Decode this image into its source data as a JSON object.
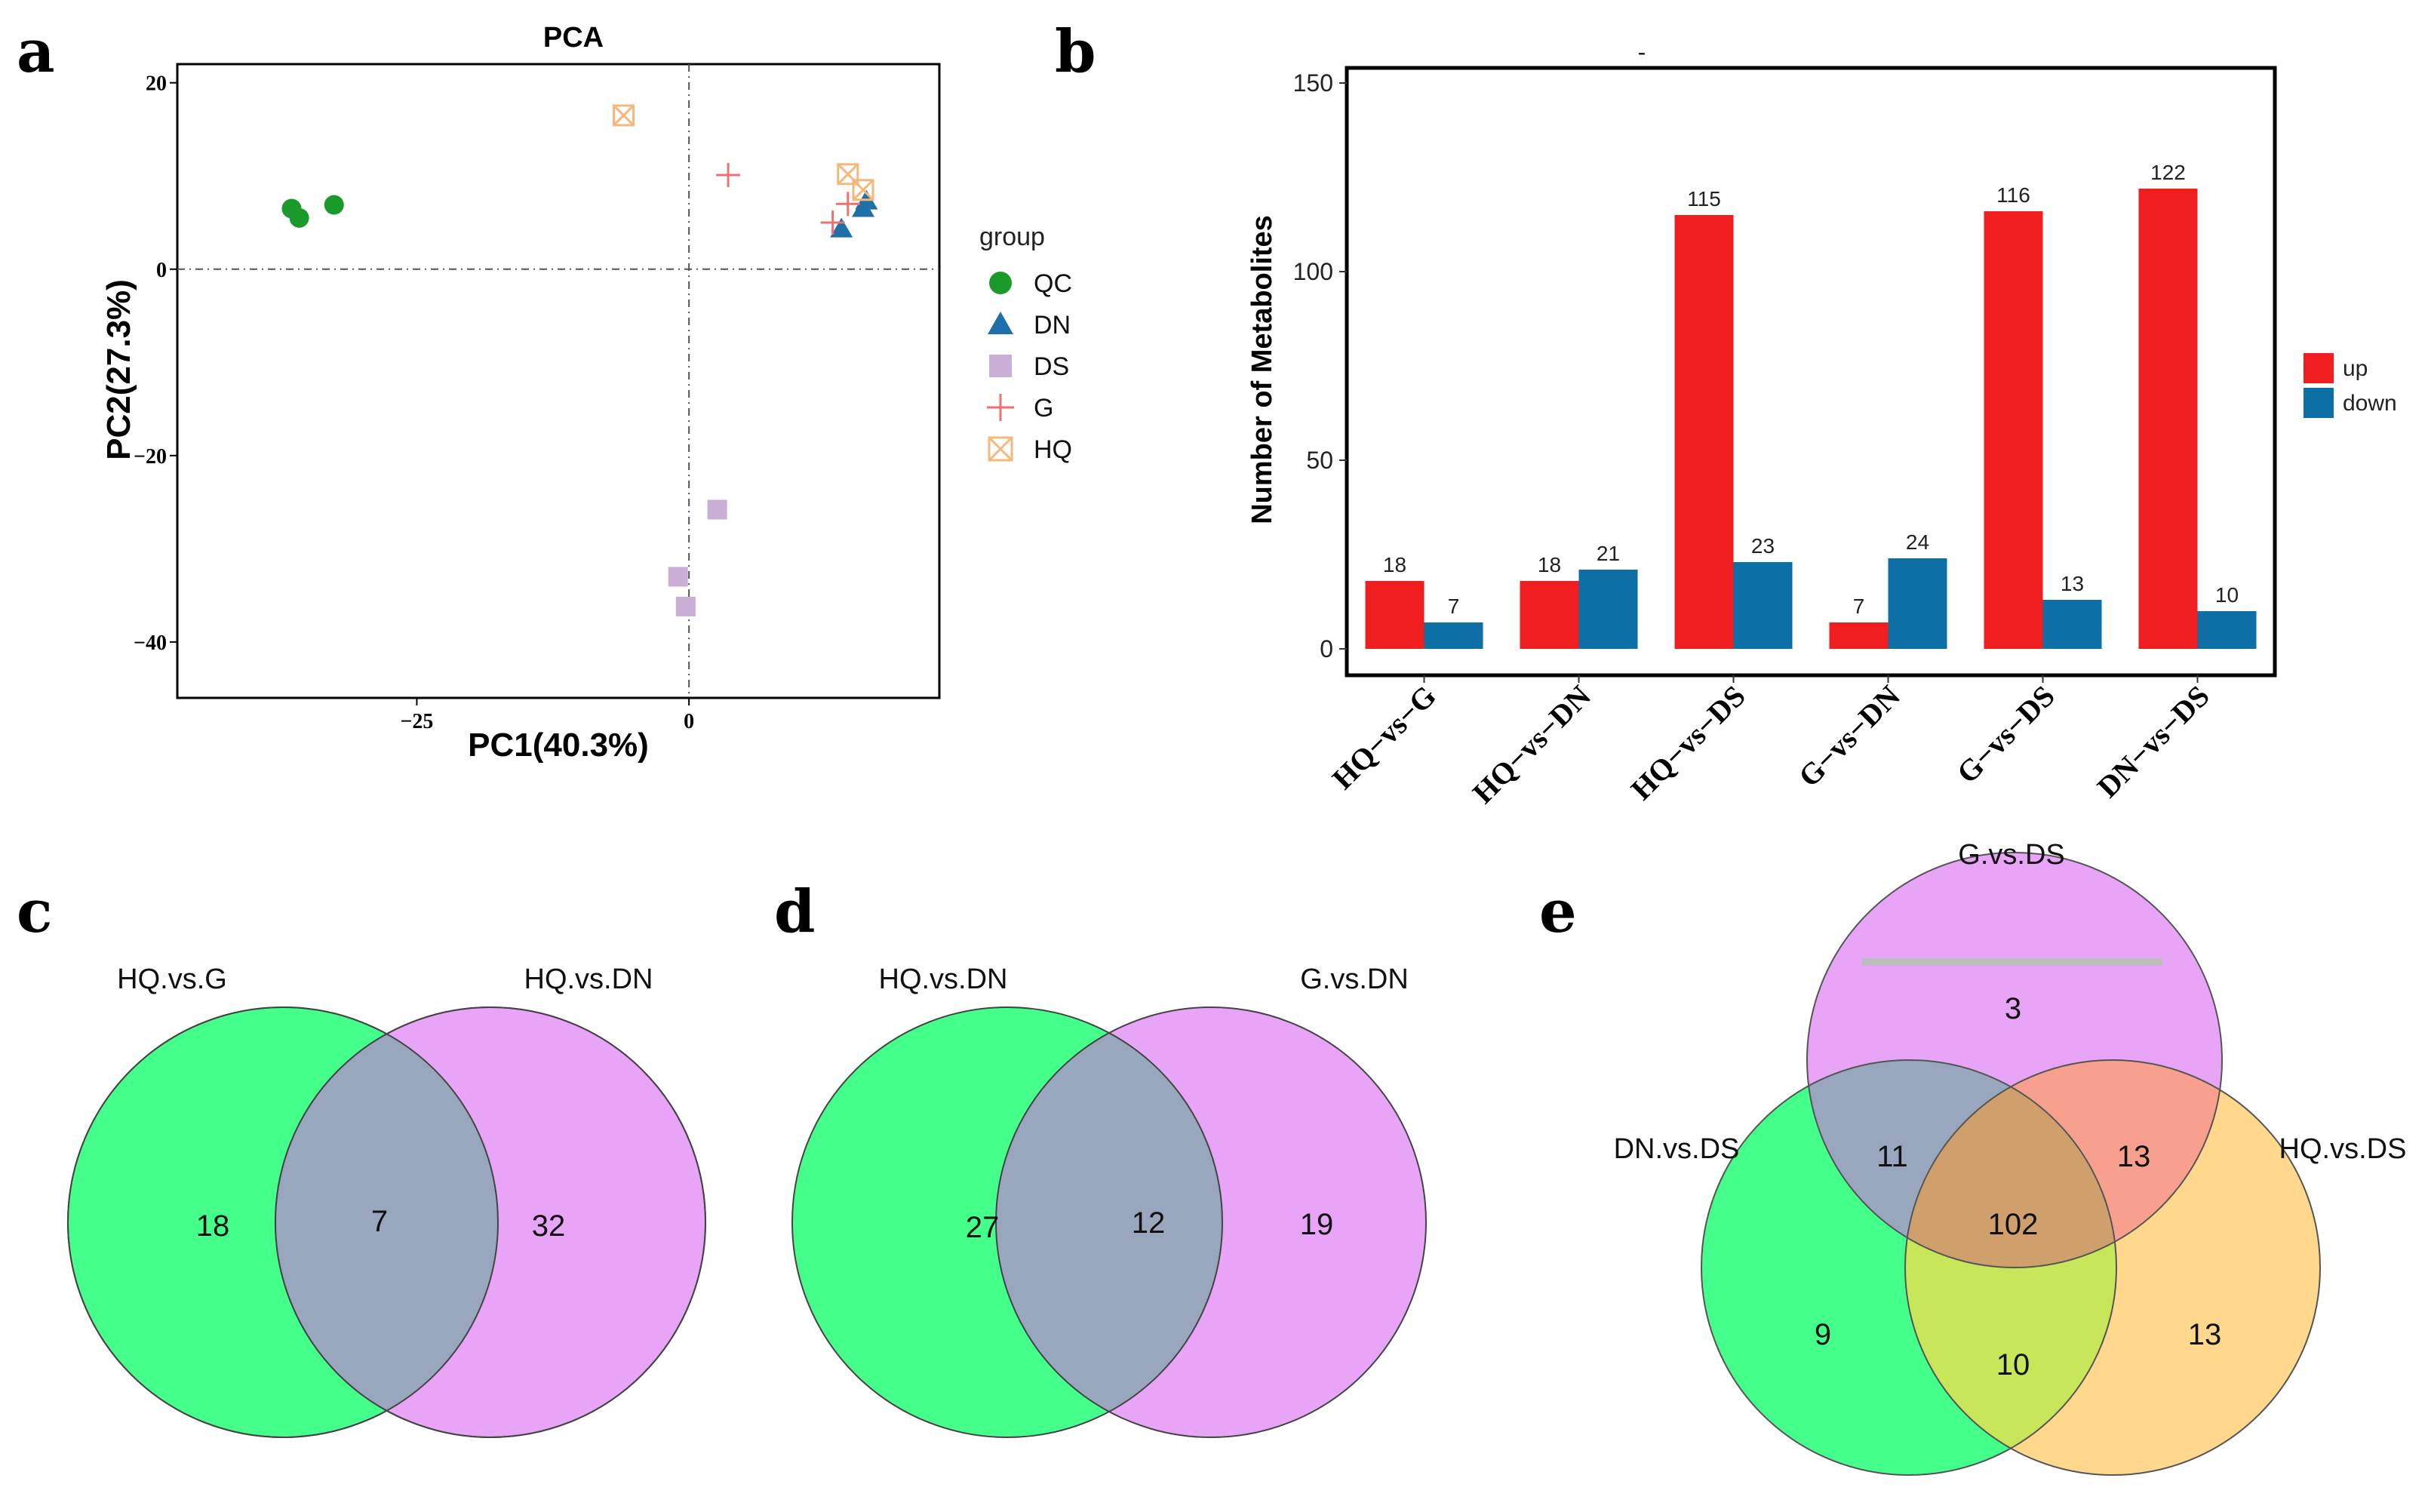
{
  "panels": {
    "a": "a",
    "b": "b",
    "c": "c",
    "d": "d",
    "e": "e"
  },
  "chart_data": [
    {
      "type": "scatter",
      "title": "PCA",
      "xlabel": "PC1(40.3%)",
      "ylabel": "PC2(27.3%)",
      "xlim": [
        -47,
        23
      ],
      "ylim": [
        -46,
        22
      ],
      "x_ticks": [
        -25,
        0
      ],
      "y_ticks": [
        20,
        0,
        -20,
        -40
      ],
      "reference_lines": {
        "x": 0,
        "y": 0
      },
      "legend_title": "group",
      "series": [
        {
          "name": "QC",
          "color": "#1a9a2a",
          "marker": "circle",
          "points": [
            {
              "x": -36.5,
              "y": 6.5
            },
            {
              "x": -35.8,
              "y": 5.5
            },
            {
              "x": -32.6,
              "y": 6.9
            }
          ]
        },
        {
          "name": "DN",
          "color": "#1f6fa8",
          "marker": "triangle",
          "points": [
            {
              "x": 14.0,
              "y": 4.3
            },
            {
              "x": 16.0,
              "y": 6.5
            },
            {
              "x": 16.3,
              "y": 7.3
            }
          ]
        },
        {
          "name": "DS",
          "color": "#c9aed6",
          "marker": "square",
          "points": [
            {
              "x": 2.6,
              "y": -25.8
            },
            {
              "x": -1.0,
              "y": -33.0
            },
            {
              "x": -0.3,
              "y": -36.2
            }
          ]
        },
        {
          "name": "G",
          "color": "#f07070",
          "marker": "plus",
          "points": [
            {
              "x": 3.6,
              "y": 10.1
            },
            {
              "x": 13.2,
              "y": 5.0
            },
            {
              "x": 14.6,
              "y": 7.0
            }
          ]
        },
        {
          "name": "HQ",
          "color": "#f4b87a",
          "marker": "boxx",
          "points": [
            {
              "x": -6.0,
              "y": 16.5
            },
            {
              "x": 14.6,
              "y": 10.2
            },
            {
              "x": 16.0,
              "y": 8.5
            }
          ]
        }
      ]
    },
    {
      "type": "bar",
      "title": "-",
      "ylabel": "Number of Metabolites",
      "ylim": [
        0,
        150
      ],
      "y_ticks": [
        0,
        50,
        100,
        150
      ],
      "categories": [
        "HQ−vs−G",
        "HQ−vs−DN",
        "HQ−vs−DS",
        "G−vs−DN",
        "G−vs−DS",
        "DN−vs−DS"
      ],
      "series": [
        {
          "name": "up",
          "color": "#f01e1e",
          "values": [
            18,
            18,
            115,
            7,
            116,
            122
          ]
        },
        {
          "name": "down",
          "color": "#0e6fa6",
          "values": [
            7,
            21,
            23,
            24,
            13,
            10
          ]
        }
      ],
      "legend_position": "right"
    },
    {
      "type": "venn",
      "sets": [
        {
          "name": "HQ.vs.G",
          "color": "#44ff8a",
          "only": "18"
        },
        {
          "name": "HQ.vs.DN",
          "color": "#e8a4f6",
          "only": "32"
        }
      ],
      "overlap": "7"
    },
    {
      "type": "venn",
      "sets": [
        {
          "name": "HQ.vs.DN",
          "color": "#44ff8a",
          "only": "27"
        },
        {
          "name": "G.vs.DN",
          "color": "#e8a4f6",
          "only": "19"
        }
      ],
      "overlap": "12"
    },
    {
      "type": "venn",
      "sets": [
        {
          "name": "G.vs.DS",
          "color": "#e8a4f6"
        },
        {
          "name": "DN.vs.DS",
          "color": "#44ff8a"
        },
        {
          "name": "HQ.vs.DS",
          "color": "#ffd88e"
        }
      ],
      "regions": {
        "top_only": "3",
        "left_only": "9",
        "right_only": "13",
        "top_left": "11",
        "top_right": "13",
        "left_right": "10",
        "all": "102"
      }
    }
  ]
}
